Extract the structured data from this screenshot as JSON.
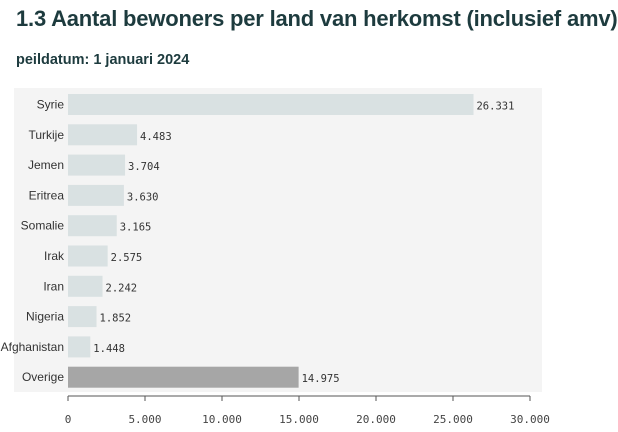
{
  "header": {
    "title": "1.3 Aantal bewoners per land van herkomst (inclusief amv)",
    "subtitle": "peildatum: 1 januari 2024"
  },
  "colors": {
    "bar": "#d9e1e2",
    "bar_highlight": "#a6a6a6",
    "panel": "#f4f4f4",
    "axis": "#555555"
  },
  "chart_data": {
    "type": "bar",
    "orientation": "horizontal",
    "title": "1.3 Aantal bewoners per land van herkomst (inclusief amv)",
    "subtitle": "peildatum: 1 januari 2024",
    "categories": [
      "Syrie",
      "Turkije",
      "Jemen",
      "Eritrea",
      "Somalie",
      "Irak",
      "Iran",
      "Nigeria",
      "Afghanistan",
      "Overige"
    ],
    "values": [
      26331,
      4483,
      3704,
      3630,
      3165,
      2575,
      2242,
      1852,
      1448,
      14975
    ],
    "value_labels": [
      "26.331",
      "4.483",
      "3.704",
      "3.630",
      "3.165",
      "2.575",
      "2.242",
      "1.852",
      "1.448",
      "14.975"
    ],
    "xlim": [
      0,
      30000
    ],
    "xticks": [
      0,
      5000,
      10000,
      15000,
      20000,
      25000,
      30000
    ],
    "xtick_labels": [
      "0",
      "5.000",
      "10.000",
      "15.000",
      "20.000",
      "25.000",
      "30.000"
    ],
    "highlight_category": "Overige",
    "grid": false,
    "legend": false
  }
}
